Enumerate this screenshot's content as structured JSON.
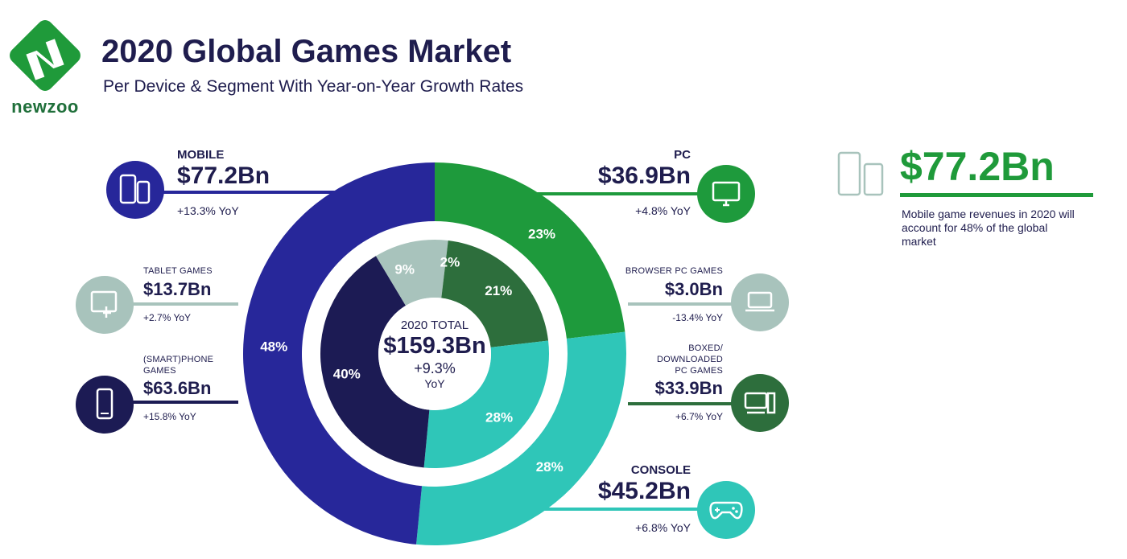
{
  "header": {
    "title": "2020 Global Games Market",
    "subtitle": "Per Device & Segment With Year-on-Year Growth Rates",
    "logo_text": "newzoo"
  },
  "colors": {
    "mobile": "#27279a",
    "smartphone": "#1c1b54",
    "tablet": "#a8c3bc",
    "pc": "#1e9a3c",
    "boxed_pc": "#2d6e3c",
    "browser_pc": "#a8c3bc",
    "console": "#2fc6b8",
    "callout": "#1f9a3a",
    "text": "#1f1d4e"
  },
  "segments": {
    "mobile": {
      "name": "MOBILE",
      "value": "$77.2Bn",
      "yoy": "+13.3% YoY",
      "icon": "mobile-devices-icon"
    },
    "tablet": {
      "name": "TABLET GAMES",
      "value": "$13.7Bn",
      "yoy": "+2.7% YoY",
      "icon": "tablet-touch-icon"
    },
    "smartphone": {
      "name_line1": "(SMART)PHONE",
      "name_line2": "GAMES",
      "value": "$63.6Bn",
      "yoy": "+15.8% YoY",
      "icon": "smartphone-icon"
    },
    "pc": {
      "name": "PC",
      "value": "$36.9Bn",
      "yoy": "+4.8% YoY",
      "icon": "monitor-icon"
    },
    "browser_pc": {
      "name": "BROWSER PC GAMES",
      "value": "$3.0Bn",
      "yoy": "-13.4% YoY",
      "icon": "laptop-icon"
    },
    "boxed_pc": {
      "name_line1": "BOXED/",
      "name_line2": "DOWNLOADED",
      "name_line3": "PC GAMES",
      "value": "$33.9Bn",
      "yoy": "+6.7% YoY",
      "icon": "desktop-pc-icon"
    },
    "console": {
      "name": "CONSOLE",
      "value": "$45.2Bn",
      "yoy": "+6.8% YoY",
      "icon": "gamepad-icon"
    }
  },
  "center": {
    "label": "2020 TOTAL",
    "value": "$159.3Bn",
    "growth": "+9.3%",
    "yoy": "YoY"
  },
  "callout": {
    "value": "$77.2Bn",
    "text": "Mobile game revenues in 2020 will account for 48% of the global market",
    "icon": "mobile-devices-icon"
  },
  "chart_data": {
    "type": "pie",
    "title": "2020 Global Games Market",
    "total": 159.3,
    "outer_ring": [
      {
        "name": "PC",
        "value": 36.9,
        "pct_label": "23%"
      },
      {
        "name": "CONSOLE",
        "value": 45.2,
        "pct_label": "28%"
      },
      {
        "name": "MOBILE",
        "value": 77.2,
        "pct_label": "48%"
      }
    ],
    "inner_ring": [
      {
        "name": "BROWSER PC GAMES",
        "value": 3.0,
        "pct_label": "2%"
      },
      {
        "name": "BOXED/DOWNLOADED PC GAMES",
        "value": 33.9,
        "pct_label": "21%"
      },
      {
        "name": "CONSOLE",
        "value": 45.2,
        "pct_label": "28%"
      },
      {
        "name": "(SMART)PHONE GAMES",
        "value": 63.6,
        "pct_label": "40%"
      },
      {
        "name": "TABLET GAMES",
        "value": 13.7,
        "pct_label": "9%"
      }
    ]
  }
}
